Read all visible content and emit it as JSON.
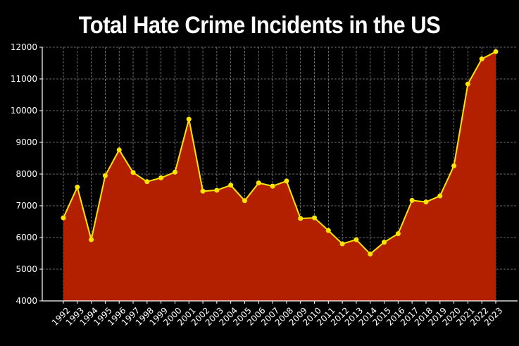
{
  "chart_data": {
    "type": "area",
    "title": "Total Hate Crime Incidents in the US",
    "xlabel": "",
    "ylabel": "",
    "x": [
      "1992",
      "1993",
      "1994",
      "1995",
      "1996",
      "1997",
      "1998",
      "1999",
      "2000",
      "2001",
      "2002",
      "2003",
      "2004",
      "2005",
      "2006",
      "2007",
      "2008",
      "2009",
      "2010",
      "2011",
      "2012",
      "2013",
      "2014",
      "2015",
      "2016",
      "2017",
      "2018",
      "2019",
      "2020",
      "2021",
      "2022",
      "2023"
    ],
    "values": [
      6620,
      7590,
      5930,
      7950,
      8760,
      8050,
      7760,
      7880,
      8060,
      9730,
      7460,
      7490,
      7650,
      7160,
      7720,
      7620,
      7780,
      6600,
      6620,
      6220,
      5800,
      5930,
      5480,
      5850,
      6120,
      7170,
      7120,
      7310,
      8260,
      10840,
      11630,
      11860
    ],
    "ylim": [
      4000,
      12000
    ],
    "yticks": [
      4000,
      5000,
      6000,
      7000,
      8000,
      9000,
      10000,
      11000,
      12000
    ],
    "grid": true,
    "colors": {
      "background": "#000000",
      "fill": "#b22000",
      "line": "#ffe400",
      "marker": "#ffe400",
      "grid": "#888888",
      "text": "#ffffff"
    }
  }
}
